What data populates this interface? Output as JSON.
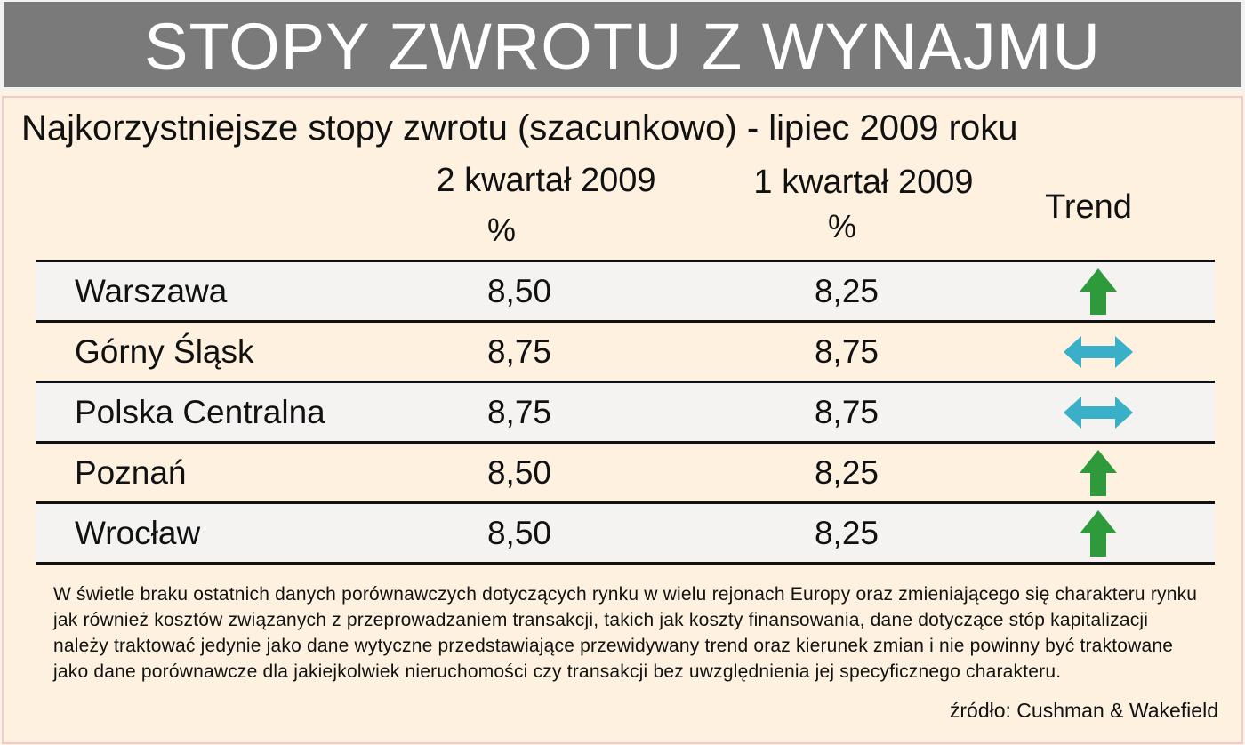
{
  "banner": {
    "title": "STOPY ZWROTU Z WYNAJMU"
  },
  "subtitle": "Najkorzystniejsze stopy zwrotu (szacunkowo) - lipiec 2009 roku",
  "columns": {
    "q2": {
      "label": "2 kwartał 2009",
      "unit": "%"
    },
    "q1": {
      "label": "1 kwartał 2009",
      "unit": "%"
    },
    "trend": {
      "label": "Trend"
    }
  },
  "rows": [
    {
      "name": "Warszawa",
      "q2": "8,50",
      "q1": "8,25",
      "trend": "up-arrow-icon"
    },
    {
      "name": "Górny Śląsk",
      "q2": "8,75",
      "q1": "8,75",
      "trend": "left-right-arrow-icon"
    },
    {
      "name": "Polska Centralna",
      "q2": "8,75",
      "q1": "8,75",
      "trend": "left-right-arrow-icon"
    },
    {
      "name": "Poznań",
      "q2": "8,50",
      "q1": "8,25",
      "trend": "up-arrow-icon"
    },
    {
      "name": "Wrocław",
      "q2": "8,50",
      "q1": "8,25",
      "trend": "up-arrow-icon"
    }
  ],
  "note": "W świetle braku ostatnich danych porównawczych dotyczących rynku w wielu rejonach Europy oraz zmieniającego się charakteru rynku jak również kosztów związanych z przeprowadzaniem transakcji, takich jak koszty finansowania, dane dotyczące stóp kapitalizacji należy traktować jedynie jako dane wytyczne przedstawiające przewidywany trend oraz kierunek zmian i nie powinny być traktowane jako dane porównawcze dla jakiejkolwiek nieruchomości czy transakcji bez uwzględnienia jej specyficznego charakteru.",
  "source": "źródło: Cushman & Wakefield",
  "colors": {
    "up": "#2e9a3c",
    "flat": "#3ab0c8",
    "banner": "#7a7a7a",
    "background": "#fef1df"
  }
}
